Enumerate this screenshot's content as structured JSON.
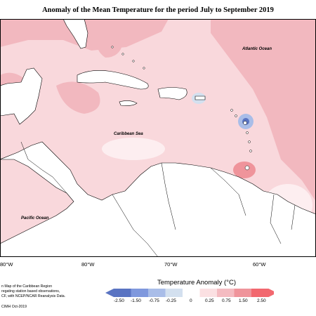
{
  "title": "Anomaly of the Mean Temperature for the period July to September 2019",
  "map_labels": {
    "atlantic": "Atlantic Ocean",
    "caribbean": "Caribbean Sea",
    "pacific": "Pacific Ocean"
  },
  "longitude_ticks": [
    "80°W",
    "80°W",
    "70°W",
    "60°W"
  ],
  "legend": {
    "title": "Temperature Anomaly (°C)",
    "tick_labels": [
      "-2.50",
      "-1.50",
      "-0.75",
      "-0.25",
      "0",
      "0.25",
      "0.75",
      "1.50",
      "2.50"
    ],
    "colors": [
      "#5a74c2",
      "#7f98dd",
      "#a9bde8",
      "#d3e0ef",
      "#ffffff",
      "#fbe0e2",
      "#f4bbc1",
      "#ef949b",
      "#f2686f"
    ]
  },
  "footnote": {
    "line1": "n Map of the Caribbean Region",
    "line2": "regating station based observations,",
    "line3": "CF, with NCEP/NCAR Reanalysis Data.",
    "credit": "CIMH Oct-2019"
  },
  "colors": {
    "land": "#ffffff",
    "sea_base": "#f9d8dc",
    "sea_warm": "#f2b8bf",
    "sea_cool": "#fdeef0"
  }
}
